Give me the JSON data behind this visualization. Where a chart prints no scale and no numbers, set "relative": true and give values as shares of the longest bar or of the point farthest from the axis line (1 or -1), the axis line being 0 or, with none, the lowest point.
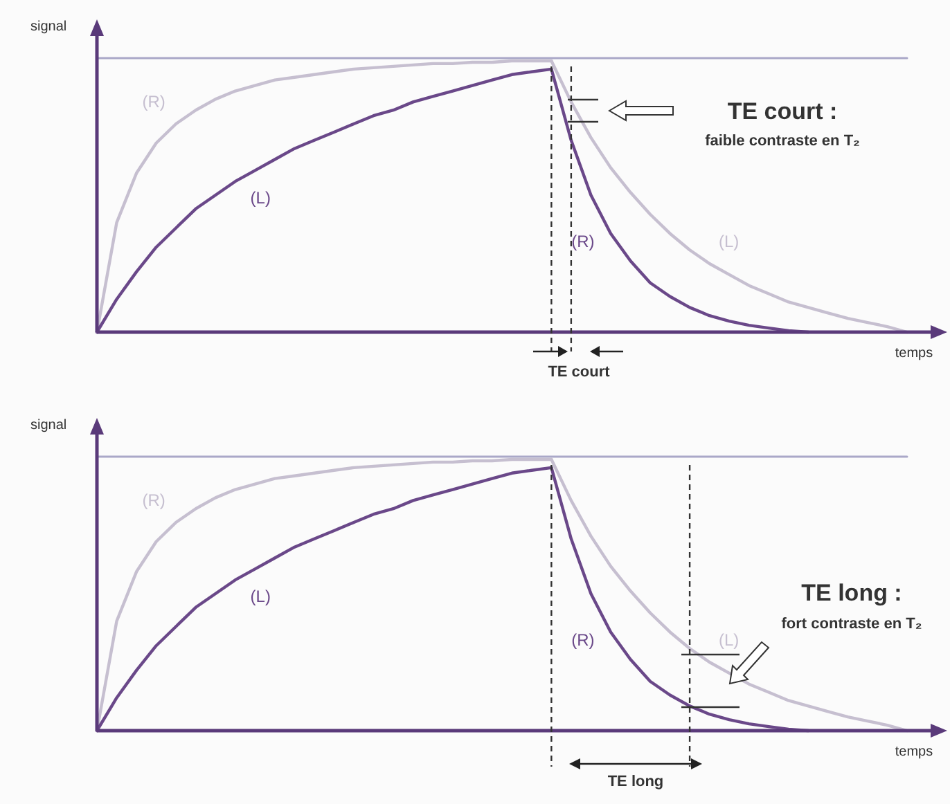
{
  "chart_data": [
    {
      "type": "line",
      "relative": true,
      "xlabel": "temps",
      "ylabel": "signal",
      "categories": [
        null,
        null,
        null,
        null,
        null,
        null,
        null,
        null,
        null,
        null,
        null,
        null,
        null,
        null,
        null,
        null,
        null,
        null,
        null,
        null,
        null,
        null,
        null,
        null,
        null,
        null,
        null,
        null,
        null,
        null,
        null,
        null,
        null,
        null,
        null,
        null,
        null,
        null,
        null,
        null,
        null,
        null
      ],
      "series": [
        {
          "color": "#aaa8c8",
          "values": [
            1,
            1,
            1,
            1,
            1,
            1,
            1,
            1,
            1,
            1,
            1,
            1,
            1,
            1,
            1,
            1,
            1,
            1,
            1,
            1,
            1,
            1,
            1,
            1,
            1,
            1,
            1,
            1,
            1,
            1,
            1,
            1,
            1,
            1,
            1,
            1,
            1,
            1,
            1,
            1,
            1,
            1
          ]
        },
        {
          "name": "(R)",
          "color": "#c6bfd0",
          "values": [
            0,
            0.4,
            0.58,
            0.69,
            0.76,
            0.81,
            0.85,
            0.88,
            0.9,
            0.92,
            0.93,
            0.94,
            0.95,
            0.96,
            0.965,
            0.97,
            0.975,
            0.98,
            0.98,
            0.985,
            0.985,
            0.99,
            0.99,
            0.99,
            null,
            null,
            null,
            null,
            null,
            null,
            null,
            null,
            null,
            null,
            null,
            null,
            null,
            null,
            null,
            null,
            null,
            null
          ]
        },
        {
          "name": "(L)",
          "color": "#6a4889",
          "values": [
            0,
            0.12,
            0.22,
            0.31,
            0.38,
            0.45,
            0.5,
            0.55,
            0.59,
            0.63,
            0.67,
            0.7,
            0.73,
            0.76,
            0.79,
            0.81,
            0.84,
            0.86,
            0.88,
            0.9,
            0.92,
            0.94,
            0.95,
            0.96,
            null,
            null,
            null,
            null,
            null,
            null,
            null,
            null,
            null,
            null,
            null,
            null,
            null,
            null,
            null,
            null,
            null,
            null
          ]
        },
        {
          "name": "(R)",
          "color": "#6a4889",
          "values": [
            null,
            null,
            null,
            null,
            null,
            null,
            null,
            null,
            null,
            null,
            null,
            null,
            null,
            null,
            null,
            null,
            null,
            null,
            null,
            null,
            null,
            null,
            null,
            0.96,
            0.7,
            0.5,
            0.36,
            0.26,
            0.18,
            0.13,
            0.09,
            0.06,
            0.04,
            0.025,
            0.015,
            0.005,
            0,
            null,
            null,
            null,
            null,
            null
          ]
        },
        {
          "name": "(L)",
          "color": "#c6bfd0",
          "values": [
            null,
            null,
            null,
            null,
            null,
            null,
            null,
            null,
            null,
            null,
            null,
            null,
            null,
            null,
            null,
            null,
            null,
            null,
            null,
            null,
            null,
            null,
            null,
            0.99,
            0.84,
            0.71,
            0.6,
            0.51,
            0.43,
            0.36,
            0.3,
            0.25,
            0.21,
            0.17,
            0.14,
            0.11,
            0.09,
            0.07,
            0.05,
            0.035,
            0.02,
            0
          ]
        }
      ],
      "annotations": [
        "TE court :",
        "faible contraste en T₂",
        "TE court"
      ]
    },
    {
      "type": "line",
      "relative": true,
      "xlabel": "temps",
      "ylabel": "signal",
      "categories": [
        null,
        null,
        null,
        null,
        null,
        null,
        null,
        null,
        null,
        null,
        null,
        null,
        null,
        null,
        null,
        null,
        null,
        null,
        null,
        null,
        null,
        null,
        null,
        null,
        null,
        null,
        null,
        null,
        null,
        null,
        null,
        null,
        null,
        null,
        null,
        null,
        null,
        null,
        null,
        null,
        null,
        null
      ],
      "series": [
        {
          "color": "#aaa8c8",
          "values": [
            1,
            1,
            1,
            1,
            1,
            1,
            1,
            1,
            1,
            1,
            1,
            1,
            1,
            1,
            1,
            1,
            1,
            1,
            1,
            1,
            1,
            1,
            1,
            1,
            1,
            1,
            1,
            1,
            1,
            1,
            1,
            1,
            1,
            1,
            1,
            1,
            1,
            1,
            1,
            1,
            1,
            1
          ]
        },
        {
          "name": "(R)",
          "color": "#c6bfd0",
          "values": [
            0,
            0.4,
            0.58,
            0.69,
            0.76,
            0.81,
            0.85,
            0.88,
            0.9,
            0.92,
            0.93,
            0.94,
            0.95,
            0.96,
            0.965,
            0.97,
            0.975,
            0.98,
            0.98,
            0.985,
            0.985,
            0.99,
            0.99,
            0.99,
            null,
            null,
            null,
            null,
            null,
            null,
            null,
            null,
            null,
            null,
            null,
            null,
            null,
            null,
            null,
            null,
            null,
            null
          ]
        },
        {
          "name": "(L)",
          "color": "#6a4889",
          "values": [
            0,
            0.12,
            0.22,
            0.31,
            0.38,
            0.45,
            0.5,
            0.55,
            0.59,
            0.63,
            0.67,
            0.7,
            0.73,
            0.76,
            0.79,
            0.81,
            0.84,
            0.86,
            0.88,
            0.9,
            0.92,
            0.94,
            0.95,
            0.96,
            null,
            null,
            null,
            null,
            null,
            null,
            null,
            null,
            null,
            null,
            null,
            null,
            null,
            null,
            null,
            null,
            null,
            null
          ]
        },
        {
          "name": "(R)",
          "color": "#6a4889",
          "values": [
            null,
            null,
            null,
            null,
            null,
            null,
            null,
            null,
            null,
            null,
            null,
            null,
            null,
            null,
            null,
            null,
            null,
            null,
            null,
            null,
            null,
            null,
            null,
            0.96,
            0.7,
            0.5,
            0.36,
            0.26,
            0.18,
            0.13,
            0.09,
            0.06,
            0.04,
            0.025,
            0.015,
            0.005,
            0,
            null,
            null,
            null,
            null,
            null
          ]
        },
        {
          "name": "(L)",
          "color": "#c6bfd0",
          "values": [
            null,
            null,
            null,
            null,
            null,
            null,
            null,
            null,
            null,
            null,
            null,
            null,
            null,
            null,
            null,
            null,
            null,
            null,
            null,
            null,
            null,
            null,
            null,
            0.99,
            0.84,
            0.71,
            0.6,
            0.51,
            0.43,
            0.36,
            0.3,
            0.25,
            0.21,
            0.17,
            0.14,
            0.11,
            0.09,
            0.07,
            0.05,
            0.035,
            0.02,
            0
          ]
        }
      ],
      "annotations": [
        "TE long :",
        "fort contraste en T₂",
        "TE long"
      ]
    }
  ]
}
